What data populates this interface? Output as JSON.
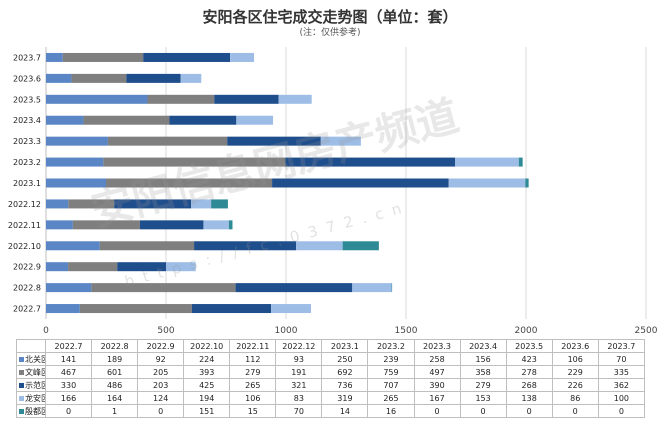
{
  "title": "安阳各区住宅成交走势图（单位：套）",
  "subtitle": "(注：仅供参考)",
  "watermark": {
    "main": "安阳信息网房产频道",
    "url": "https://fc.0372.cn"
  },
  "chart_data": {
    "type": "bar",
    "orientation": "horizontal",
    "stacked": true,
    "title": "安阳各区住宅成交走势图（单位：套）",
    "categories": [
      "2022.7",
      "2022.8",
      "2022.9",
      "2022.10",
      "2022.11",
      "2022.12",
      "2023.1",
      "2023.2",
      "2023.3",
      "2023.4",
      "2023.5",
      "2023.6",
      "2023.7"
    ],
    "series": [
      {
        "name": "北关区",
        "color": "#5b86c5",
        "values": [
          141,
          189,
          92,
          224,
          112,
          93,
          250,
          239,
          258,
          156,
          423,
          106,
          70
        ]
      },
      {
        "name": "文峰区",
        "color": "#7f7f7f",
        "values": [
          467,
          601,
          205,
          393,
          279,
          191,
          692,
          759,
          497,
          358,
          278,
          229,
          335
        ]
      },
      {
        "name": "示范区",
        "color": "#1f4e8c",
        "values": [
          330,
          486,
          203,
          425,
          265,
          321,
          736,
          707,
          390,
          279,
          268,
          226,
          362
        ]
      },
      {
        "name": "龙安区",
        "color": "#9dbde6",
        "values": [
          166,
          164,
          124,
          194,
          106,
          83,
          319,
          265,
          167,
          153,
          138,
          86,
          100
        ]
      },
      {
        "name": "殷都区",
        "color": "#2e8b96",
        "values": [
          0,
          1,
          0,
          151,
          15,
          70,
          14,
          16,
          0,
          0,
          0,
          0,
          0
        ]
      }
    ],
    "xlim": [
      0,
      2500
    ],
    "xticks": [
      0,
      500,
      1000,
      1500,
      2000,
      2500
    ],
    "grid": true,
    "legend": "table-below"
  }
}
